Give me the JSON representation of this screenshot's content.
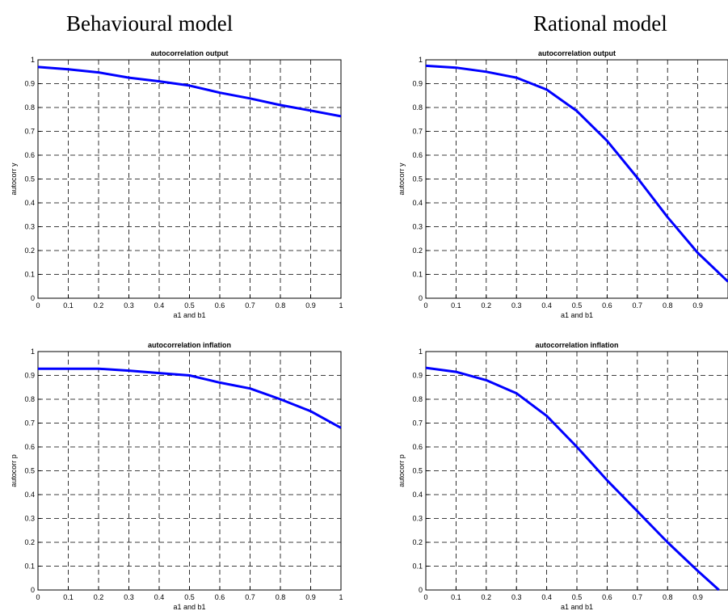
{
  "headings": {
    "left": "Behavioural model",
    "right": "Rational model"
  },
  "line_color": "#0000ff",
  "chart_data": [
    {
      "type": "line",
      "column": "Behavioural model",
      "title": "autocorrelation output",
      "xlabel": "a1 and b1",
      "ylabel": "autocorr y",
      "xlim": [
        0,
        1
      ],
      "ylim": [
        0,
        1
      ],
      "xticks": [
        "0",
        "0.1",
        "0.2",
        "0.3",
        "0.4",
        "0.5",
        "0.6",
        "0.7",
        "0.8",
        "0.9",
        "1"
      ],
      "yticks": [
        "0",
        "0.1",
        "0.2",
        "0.3",
        "0.4",
        "0.5",
        "0.6",
        "0.7",
        "0.8",
        "0.9",
        "1"
      ],
      "grid": true,
      "x": [
        0,
        0.1,
        0.2,
        0.3,
        0.4,
        0.5,
        0.6,
        0.7,
        0.8,
        0.9,
        1.0
      ],
      "y": [
        0.97,
        0.96,
        0.947,
        0.925,
        0.91,
        0.892,
        0.862,
        0.838,
        0.81,
        0.787,
        0.763
      ]
    },
    {
      "type": "line",
      "column": "Rational model",
      "title": "autocorrelation output",
      "xlabel": "a1 and b1",
      "ylabel": "autocorr y",
      "xlim": [
        0,
        1
      ],
      "ylim": [
        0,
        1
      ],
      "xticks": [
        "0",
        "0.1",
        "0.2",
        "0.3",
        "0.4",
        "0.5",
        "0.6",
        "0.7",
        "0.8",
        "0.9",
        ""
      ],
      "yticks": [
        "0",
        "0.1",
        "0.2",
        "0.3",
        "0.4",
        "0.5",
        "0.6",
        "0.7",
        "0.8",
        "0.9",
        "1"
      ],
      "grid": true,
      "x": [
        0,
        0.1,
        0.2,
        0.3,
        0.4,
        0.5,
        0.6,
        0.7,
        0.8,
        0.9,
        1.0
      ],
      "y": [
        0.975,
        0.967,
        0.95,
        0.925,
        0.875,
        0.785,
        0.66,
        0.505,
        0.34,
        0.19,
        0.07
      ]
    },
    {
      "type": "line",
      "column": "Behavioural model",
      "title": "autocorrelation inflation",
      "xlabel": "a1 and b1",
      "ylabel": "autocorr p",
      "xlim": [
        0,
        1
      ],
      "ylim": [
        0,
        1
      ],
      "xticks": [
        "0",
        "0.1",
        "0.2",
        "0.3",
        "0.4",
        "0.5",
        "0.6",
        "0.7",
        "0.8",
        "0.9",
        "1"
      ],
      "yticks": [
        "0",
        "0.1",
        "0.2",
        "0.3",
        "0.4",
        "0.5",
        "0.6",
        "0.7",
        "0.8",
        "0.9",
        "1"
      ],
      "grid": true,
      "x": [
        0,
        0.1,
        0.2,
        0.3,
        0.4,
        0.5,
        0.6,
        0.7,
        0.8,
        0.9,
        1.0
      ],
      "y": [
        0.928,
        0.928,
        0.928,
        0.92,
        0.91,
        0.9,
        0.87,
        0.845,
        0.8,
        0.75,
        0.68
      ]
    },
    {
      "type": "line",
      "column": "Rational model",
      "title": "autocorrelation inflation",
      "xlabel": "a1 and b1",
      "ylabel": "autocorr p",
      "xlim": [
        0,
        1
      ],
      "ylim": [
        0,
        1
      ],
      "xticks": [
        "0",
        "0.1",
        "0.2",
        "0.3",
        "0.4",
        "0.5",
        "0.6",
        "0.7",
        "0.8",
        "0.9",
        ""
      ],
      "yticks": [
        "0",
        "0.1",
        "0.2",
        "0.3",
        "0.4",
        "0.5",
        "0.6",
        "0.7",
        "0.8",
        "0.9",
        "1"
      ],
      "grid": true,
      "x": [
        0,
        0.1,
        0.2,
        0.3,
        0.4,
        0.5,
        0.6,
        0.7,
        0.8,
        0.9,
        0.97
      ],
      "y": [
        0.932,
        0.915,
        0.88,
        0.825,
        0.73,
        0.6,
        0.46,
        0.33,
        0.2,
        0.08,
        0.0
      ]
    }
  ]
}
